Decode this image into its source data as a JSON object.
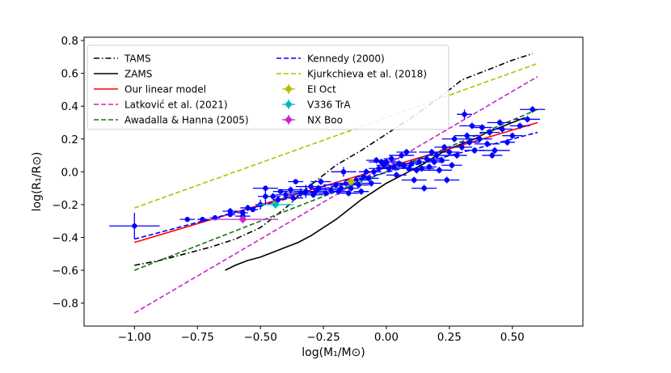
{
  "chart_data": {
    "type": "scatter",
    "title": "",
    "xlabel": "log(M₁/M⊙)",
    "ylabel": "log(R₁/R⊙)",
    "xlim": [
      -1.2,
      0.78
    ],
    "ylim": [
      -0.94,
      0.82
    ],
    "xticks": [
      -1.0,
      -0.75,
      -0.5,
      -0.25,
      0.0,
      0.25,
      0.5
    ],
    "xtick_labels": [
      "−1.00",
      "−0.75",
      "−0.50",
      "−0.25",
      "0.00",
      "0.25",
      "0.50"
    ],
    "yticks": [
      -0.8,
      -0.6,
      -0.4,
      -0.2,
      0.0,
      0.2,
      0.4,
      0.6,
      0.8
    ],
    "ytick_labels": [
      "−0.8",
      "−0.6",
      "−0.4",
      "−0.2",
      "0.0",
      "0.2",
      "0.4",
      "0.6",
      "0.8"
    ],
    "grid": false,
    "legend_position": "top-left",
    "legend_columns": 2,
    "series": [
      {
        "name": "TAMS",
        "kind": "line",
        "color": "#000000",
        "style": "dashdot",
        "x": [
          -1.0,
          -0.9,
          -0.8,
          -0.7,
          -0.6,
          -0.5,
          -0.4,
          -0.3,
          -0.2,
          -0.1,
          0.0,
          0.1,
          0.2,
          0.3,
          0.4,
          0.5,
          0.58
        ],
        "y": [
          -0.57,
          -0.54,
          -0.5,
          -0.46,
          -0.41,
          -0.34,
          -0.22,
          -0.08,
          0.04,
          0.13,
          0.23,
          0.33,
          0.44,
          0.56,
          0.62,
          0.68,
          0.72
        ]
      },
      {
        "name": "ZAMS",
        "kind": "line",
        "color": "#000000",
        "style": "solid",
        "x": [
          -0.64,
          -0.6,
          -0.55,
          -0.5,
          -0.45,
          -0.4,
          -0.35,
          -0.3,
          -0.25,
          -0.2,
          -0.15,
          -0.1,
          -0.05,
          0.0,
          0.05,
          0.1,
          0.15,
          0.2,
          0.25,
          0.3,
          0.35,
          0.4,
          0.45,
          0.5,
          0.55
        ],
        "y": [
          -0.6,
          -0.57,
          -0.54,
          -0.52,
          -0.49,
          -0.46,
          -0.43,
          -0.39,
          -0.34,
          -0.29,
          -0.23,
          -0.17,
          -0.12,
          -0.07,
          -0.03,
          0.01,
          0.05,
          0.1,
          0.14,
          0.17,
          0.2,
          0.24,
          0.27,
          0.3,
          0.33
        ]
      },
      {
        "name": "Our linear model",
        "kind": "line",
        "color": "#ff0000",
        "style": "solid",
        "x": [
          -1.0,
          0.6
        ],
        "y": [
          -0.43,
          0.3
        ]
      },
      {
        "name": "Latković et al. (2021)",
        "kind": "line",
        "color": "#cc22cc",
        "style": "dashed",
        "x": [
          -1.0,
          0.6
        ],
        "y": [
          -0.86,
          0.58
        ]
      },
      {
        "name": "Awadalla & Hanna (2005)",
        "kind": "line",
        "color": "#117711",
        "style": "dashed",
        "x": [
          -1.0,
          -0.8,
          -0.6,
          -0.4,
          -0.2,
          0.0,
          0.2,
          0.4,
          0.6
        ],
        "y": [
          -0.6,
          -0.48,
          -0.36,
          -0.24,
          -0.12,
          0.0,
          0.12,
          0.25,
          0.38
        ]
      },
      {
        "name": "Kennedy (2000)",
        "kind": "line",
        "color": "#0000ff",
        "style": "dashed",
        "x": [
          -1.0,
          0.6
        ],
        "y": [
          -0.41,
          0.24
        ]
      },
      {
        "name": "Kjurkchieva et al. (2018)",
        "kind": "line",
        "color": "#bbbb00",
        "style": "dashed",
        "x": [
          -1.0,
          0.6
        ],
        "y": [
          -0.22,
          0.66
        ]
      },
      {
        "name": "EI Oct",
        "kind": "errorpoint",
        "color": "#bbbb00",
        "marker": "diamond",
        "points": [
          {
            "x": -0.14,
            "y": -0.06,
            "xerr": 0.02,
            "yerr": 0.02
          }
        ]
      },
      {
        "name": "V336 TrA",
        "kind": "errorpoint",
        "color": "#00bbbb",
        "marker": "diamond",
        "points": [
          {
            "x": -0.44,
            "y": -0.2,
            "xerr": 0.07,
            "yerr": 0.02
          }
        ]
      },
      {
        "name": "NX Boo",
        "kind": "errorpoint",
        "color": "#cc22cc",
        "marker": "diamond",
        "points": [
          {
            "x": -0.57,
            "y": -0.29,
            "xerr": 0.14,
            "yerr": 0.02
          }
        ]
      }
    ],
    "sample": {
      "color": "#0000ff",
      "marker": "circle",
      "points": [
        {
          "x": -1.0,
          "y": -0.33,
          "xerr": 0.1,
          "yerr": 0.08
        },
        {
          "x": -0.79,
          "y": -0.29,
          "xerr": 0.03,
          "yerr": 0.0
        },
        {
          "x": -0.73,
          "y": -0.29,
          "xerr": 0.02,
          "yerr": 0.0
        },
        {
          "x": -0.68,
          "y": -0.28,
          "xerr": 0.02,
          "yerr": 0.0
        },
        {
          "x": -0.62,
          "y": -0.24,
          "xerr": 0.03,
          "yerr": 0.02
        },
        {
          "x": -0.62,
          "y": -0.26,
          "xerr": 0.02,
          "yerr": 0.0
        },
        {
          "x": -0.57,
          "y": -0.25,
          "xerr": 0.02,
          "yerr": 0.02
        },
        {
          "x": -0.57,
          "y": -0.27,
          "xerr": 0.03,
          "yerr": 0.0
        },
        {
          "x": -0.55,
          "y": -0.22,
          "xerr": 0.03,
          "yerr": 0.02
        },
        {
          "x": -0.53,
          "y": -0.23,
          "xerr": 0.02,
          "yerr": 0.0
        },
        {
          "x": -0.5,
          "y": -0.2,
          "xerr": 0.02,
          "yerr": 0.03
        },
        {
          "x": -0.48,
          "y": -0.1,
          "xerr": 0.05,
          "yerr": 0.0
        },
        {
          "x": -0.48,
          "y": -0.15,
          "xerr": 0.03,
          "yerr": 0.05
        },
        {
          "x": -0.45,
          "y": -0.15,
          "xerr": 0.03,
          "yerr": 0.02
        },
        {
          "x": -0.43,
          "y": -0.17,
          "xerr": 0.02,
          "yerr": 0.02
        },
        {
          "x": -0.42,
          "y": -0.12,
          "xerr": 0.03,
          "yerr": 0.0
        },
        {
          "x": -0.4,
          "y": -0.14,
          "xerr": 0.04,
          "yerr": 0.02
        },
        {
          "x": -0.38,
          "y": -0.11,
          "xerr": 0.05,
          "yerr": 0.02
        },
        {
          "x": -0.37,
          "y": -0.16,
          "xerr": 0.04,
          "yerr": 0.02
        },
        {
          "x": -0.36,
          "y": -0.06,
          "xerr": 0.03,
          "yerr": 0.0
        },
        {
          "x": -0.34,
          "y": -0.13,
          "xerr": 0.05,
          "yerr": 0.03
        },
        {
          "x": -0.32,
          "y": -0.12,
          "xerr": 0.05,
          "yerr": 0.04
        },
        {
          "x": -0.3,
          "y": -0.09,
          "xerr": 0.06,
          "yerr": 0.02
        },
        {
          "x": -0.29,
          "y": -0.14,
          "xerr": 0.04,
          "yerr": 0.02
        },
        {
          "x": -0.28,
          "y": -0.12,
          "xerr": 0.04,
          "yerr": 0.02
        },
        {
          "x": -0.27,
          "y": -0.1,
          "xerr": 0.03,
          "yerr": 0.02
        },
        {
          "x": -0.26,
          "y": -0.06,
          "xerr": 0.04,
          "yerr": 0.02
        },
        {
          "x": -0.24,
          "y": -0.13,
          "xerr": 0.03,
          "yerr": 0.0
        },
        {
          "x": -0.22,
          "y": -0.11,
          "xerr": 0.04,
          "yerr": 0.02
        },
        {
          "x": -0.2,
          "y": -0.08,
          "xerr": 0.05,
          "yerr": 0.02
        },
        {
          "x": -0.19,
          "y": -0.12,
          "xerr": 0.04,
          "yerr": 0.02
        },
        {
          "x": -0.18,
          "y": -0.1,
          "xerr": 0.03,
          "yerr": 0.02
        },
        {
          "x": -0.17,
          "y": 0.0,
          "xerr": 0.05,
          "yerr": 0.03
        },
        {
          "x": -0.16,
          "y": -0.07,
          "xerr": 0.04,
          "yerr": 0.02
        },
        {
          "x": -0.15,
          "y": -0.13,
          "xerr": 0.04,
          "yerr": 0.02
        },
        {
          "x": -0.14,
          "y": -0.1,
          "xerr": 0.03,
          "yerr": 0.02
        },
        {
          "x": -0.12,
          "y": -0.05,
          "xerr": 0.05,
          "yerr": 0.02
        },
        {
          "x": -0.11,
          "y": -0.08,
          "xerr": 0.04,
          "yerr": 0.02
        },
        {
          "x": -0.1,
          "y": -0.12,
          "xerr": 0.03,
          "yerr": 0.02
        },
        {
          "x": -0.09,
          "y": -0.03,
          "xerr": 0.03,
          "yerr": 0.02
        },
        {
          "x": -0.08,
          "y": 0.0,
          "xerr": 0.03,
          "yerr": 0.02
        },
        {
          "x": -0.07,
          "y": -0.04,
          "xerr": 0.04,
          "yerr": 0.02
        },
        {
          "x": -0.06,
          "y": -0.07,
          "xerr": 0.04,
          "yerr": 0.02
        },
        {
          "x": -0.05,
          "y": 0.0,
          "xerr": 0.03,
          "yerr": 0.02
        },
        {
          "x": -0.04,
          "y": 0.07,
          "xerr": 0.04,
          "yerr": 0.02
        },
        {
          "x": -0.03,
          "y": 0.02,
          "xerr": 0.04,
          "yerr": 0.02
        },
        {
          "x": -0.02,
          "y": 0.06,
          "xerr": 0.05,
          "yerr": 0.02
        },
        {
          "x": -0.01,
          "y": 0.04,
          "xerr": 0.03,
          "yerr": 0.02
        },
        {
          "x": 0.0,
          "y": 0.06,
          "xerr": 0.06,
          "yerr": 0.02
        },
        {
          "x": 0.01,
          "y": 0.02,
          "xerr": 0.04,
          "yerr": 0.02
        },
        {
          "x": 0.02,
          "y": 0.08,
          "xerr": 0.03,
          "yerr": 0.02
        },
        {
          "x": 0.03,
          "y": 0.03,
          "xerr": 0.05,
          "yerr": 0.02
        },
        {
          "x": 0.04,
          "y": -0.02,
          "xerr": 0.04,
          "yerr": 0.02
        },
        {
          "x": 0.05,
          "y": 0.05,
          "xerr": 0.03,
          "yerr": 0.02
        },
        {
          "x": 0.06,
          "y": 0.1,
          "xerr": 0.05,
          "yerr": 0.02
        },
        {
          "x": 0.07,
          "y": 0.04,
          "xerr": 0.04,
          "yerr": 0.02
        },
        {
          "x": 0.08,
          "y": 0.12,
          "xerr": 0.04,
          "yerr": 0.02
        },
        {
          "x": 0.09,
          "y": 0.02,
          "xerr": 0.05,
          "yerr": 0.02
        },
        {
          "x": 0.1,
          "y": 0.05,
          "xerr": 0.04,
          "yerr": 0.02
        },
        {
          "x": 0.11,
          "y": -0.05,
          "xerr": 0.05,
          "yerr": 0.02
        },
        {
          "x": 0.12,
          "y": 0.01,
          "xerr": 0.04,
          "yerr": 0.02
        },
        {
          "x": 0.13,
          "y": 0.06,
          "xerr": 0.03,
          "yerr": 0.02
        },
        {
          "x": 0.14,
          "y": 0.02,
          "xerr": 0.05,
          "yerr": 0.02
        },
        {
          "x": 0.15,
          "y": -0.1,
          "xerr": 0.05,
          "yerr": 0.02
        },
        {
          "x": 0.16,
          "y": 0.08,
          "xerr": 0.04,
          "yerr": 0.02
        },
        {
          "x": 0.17,
          "y": 0.03,
          "xerr": 0.03,
          "yerr": 0.02
        },
        {
          "x": 0.18,
          "y": 0.12,
          "xerr": 0.05,
          "yerr": 0.02
        },
        {
          "x": 0.19,
          "y": 0.06,
          "xerr": 0.04,
          "yerr": 0.02
        },
        {
          "x": 0.2,
          "y": 0.1,
          "xerr": 0.04,
          "yerr": 0.02
        },
        {
          "x": 0.21,
          "y": 0.01,
          "xerr": 0.05,
          "yerr": 0.02
        },
        {
          "x": 0.22,
          "y": 0.07,
          "xerr": 0.03,
          "yerr": 0.02
        },
        {
          "x": 0.23,
          "y": 0.15,
          "xerr": 0.04,
          "yerr": 0.02
        },
        {
          "x": 0.24,
          "y": -0.05,
          "xerr": 0.05,
          "yerr": 0.02
        },
        {
          "x": 0.25,
          "y": 0.12,
          "xerr": 0.04,
          "yerr": 0.02
        },
        {
          "x": 0.26,
          "y": 0.04,
          "xerr": 0.04,
          "yerr": 0.02
        },
        {
          "x": 0.27,
          "y": 0.2,
          "xerr": 0.05,
          "yerr": 0.02
        },
        {
          "x": 0.28,
          "y": 0.1,
          "xerr": 0.04,
          "yerr": 0.02
        },
        {
          "x": 0.3,
          "y": 0.15,
          "xerr": 0.04,
          "yerr": 0.02
        },
        {
          "x": 0.31,
          "y": 0.35,
          "xerr": 0.03,
          "yerr": 0.03
        },
        {
          "x": 0.32,
          "y": 0.22,
          "xerr": 0.05,
          "yerr": 0.02
        },
        {
          "x": 0.33,
          "y": 0.18,
          "xerr": 0.04,
          "yerr": 0.02
        },
        {
          "x": 0.34,
          "y": 0.28,
          "xerr": 0.05,
          "yerr": 0.02
        },
        {
          "x": 0.35,
          "y": 0.13,
          "xerr": 0.04,
          "yerr": 0.02
        },
        {
          "x": 0.37,
          "y": 0.2,
          "xerr": 0.05,
          "yerr": 0.02
        },
        {
          "x": 0.38,
          "y": 0.27,
          "xerr": 0.04,
          "yerr": 0.02
        },
        {
          "x": 0.4,
          "y": 0.17,
          "xerr": 0.05,
          "yerr": 0.02
        },
        {
          "x": 0.41,
          "y": 0.24,
          "xerr": 0.04,
          "yerr": 0.02
        },
        {
          "x": 0.42,
          "y": 0.1,
          "xerr": 0.04,
          "yerr": 0.02
        },
        {
          "x": 0.43,
          "y": 0.13,
          "xerr": 0.06,
          "yerr": 0.02
        },
        {
          "x": 0.45,
          "y": 0.3,
          "xerr": 0.05,
          "yerr": 0.02
        },
        {
          "x": 0.46,
          "y": 0.26,
          "xerr": 0.04,
          "yerr": 0.02
        },
        {
          "x": 0.48,
          "y": 0.18,
          "xerr": 0.03,
          "yerr": 0.02
        },
        {
          "x": 0.5,
          "y": 0.22,
          "xerr": 0.04,
          "yerr": 0.02
        },
        {
          "x": 0.53,
          "y": 0.28,
          "xerr": 0.04,
          "yerr": 0.02
        },
        {
          "x": 0.56,
          "y": 0.32,
          "xerr": 0.05,
          "yerr": 0.02
        },
        {
          "x": 0.58,
          "y": 0.38,
          "xerr": 0.05,
          "yerr": 0.02
        }
      ]
    }
  }
}
